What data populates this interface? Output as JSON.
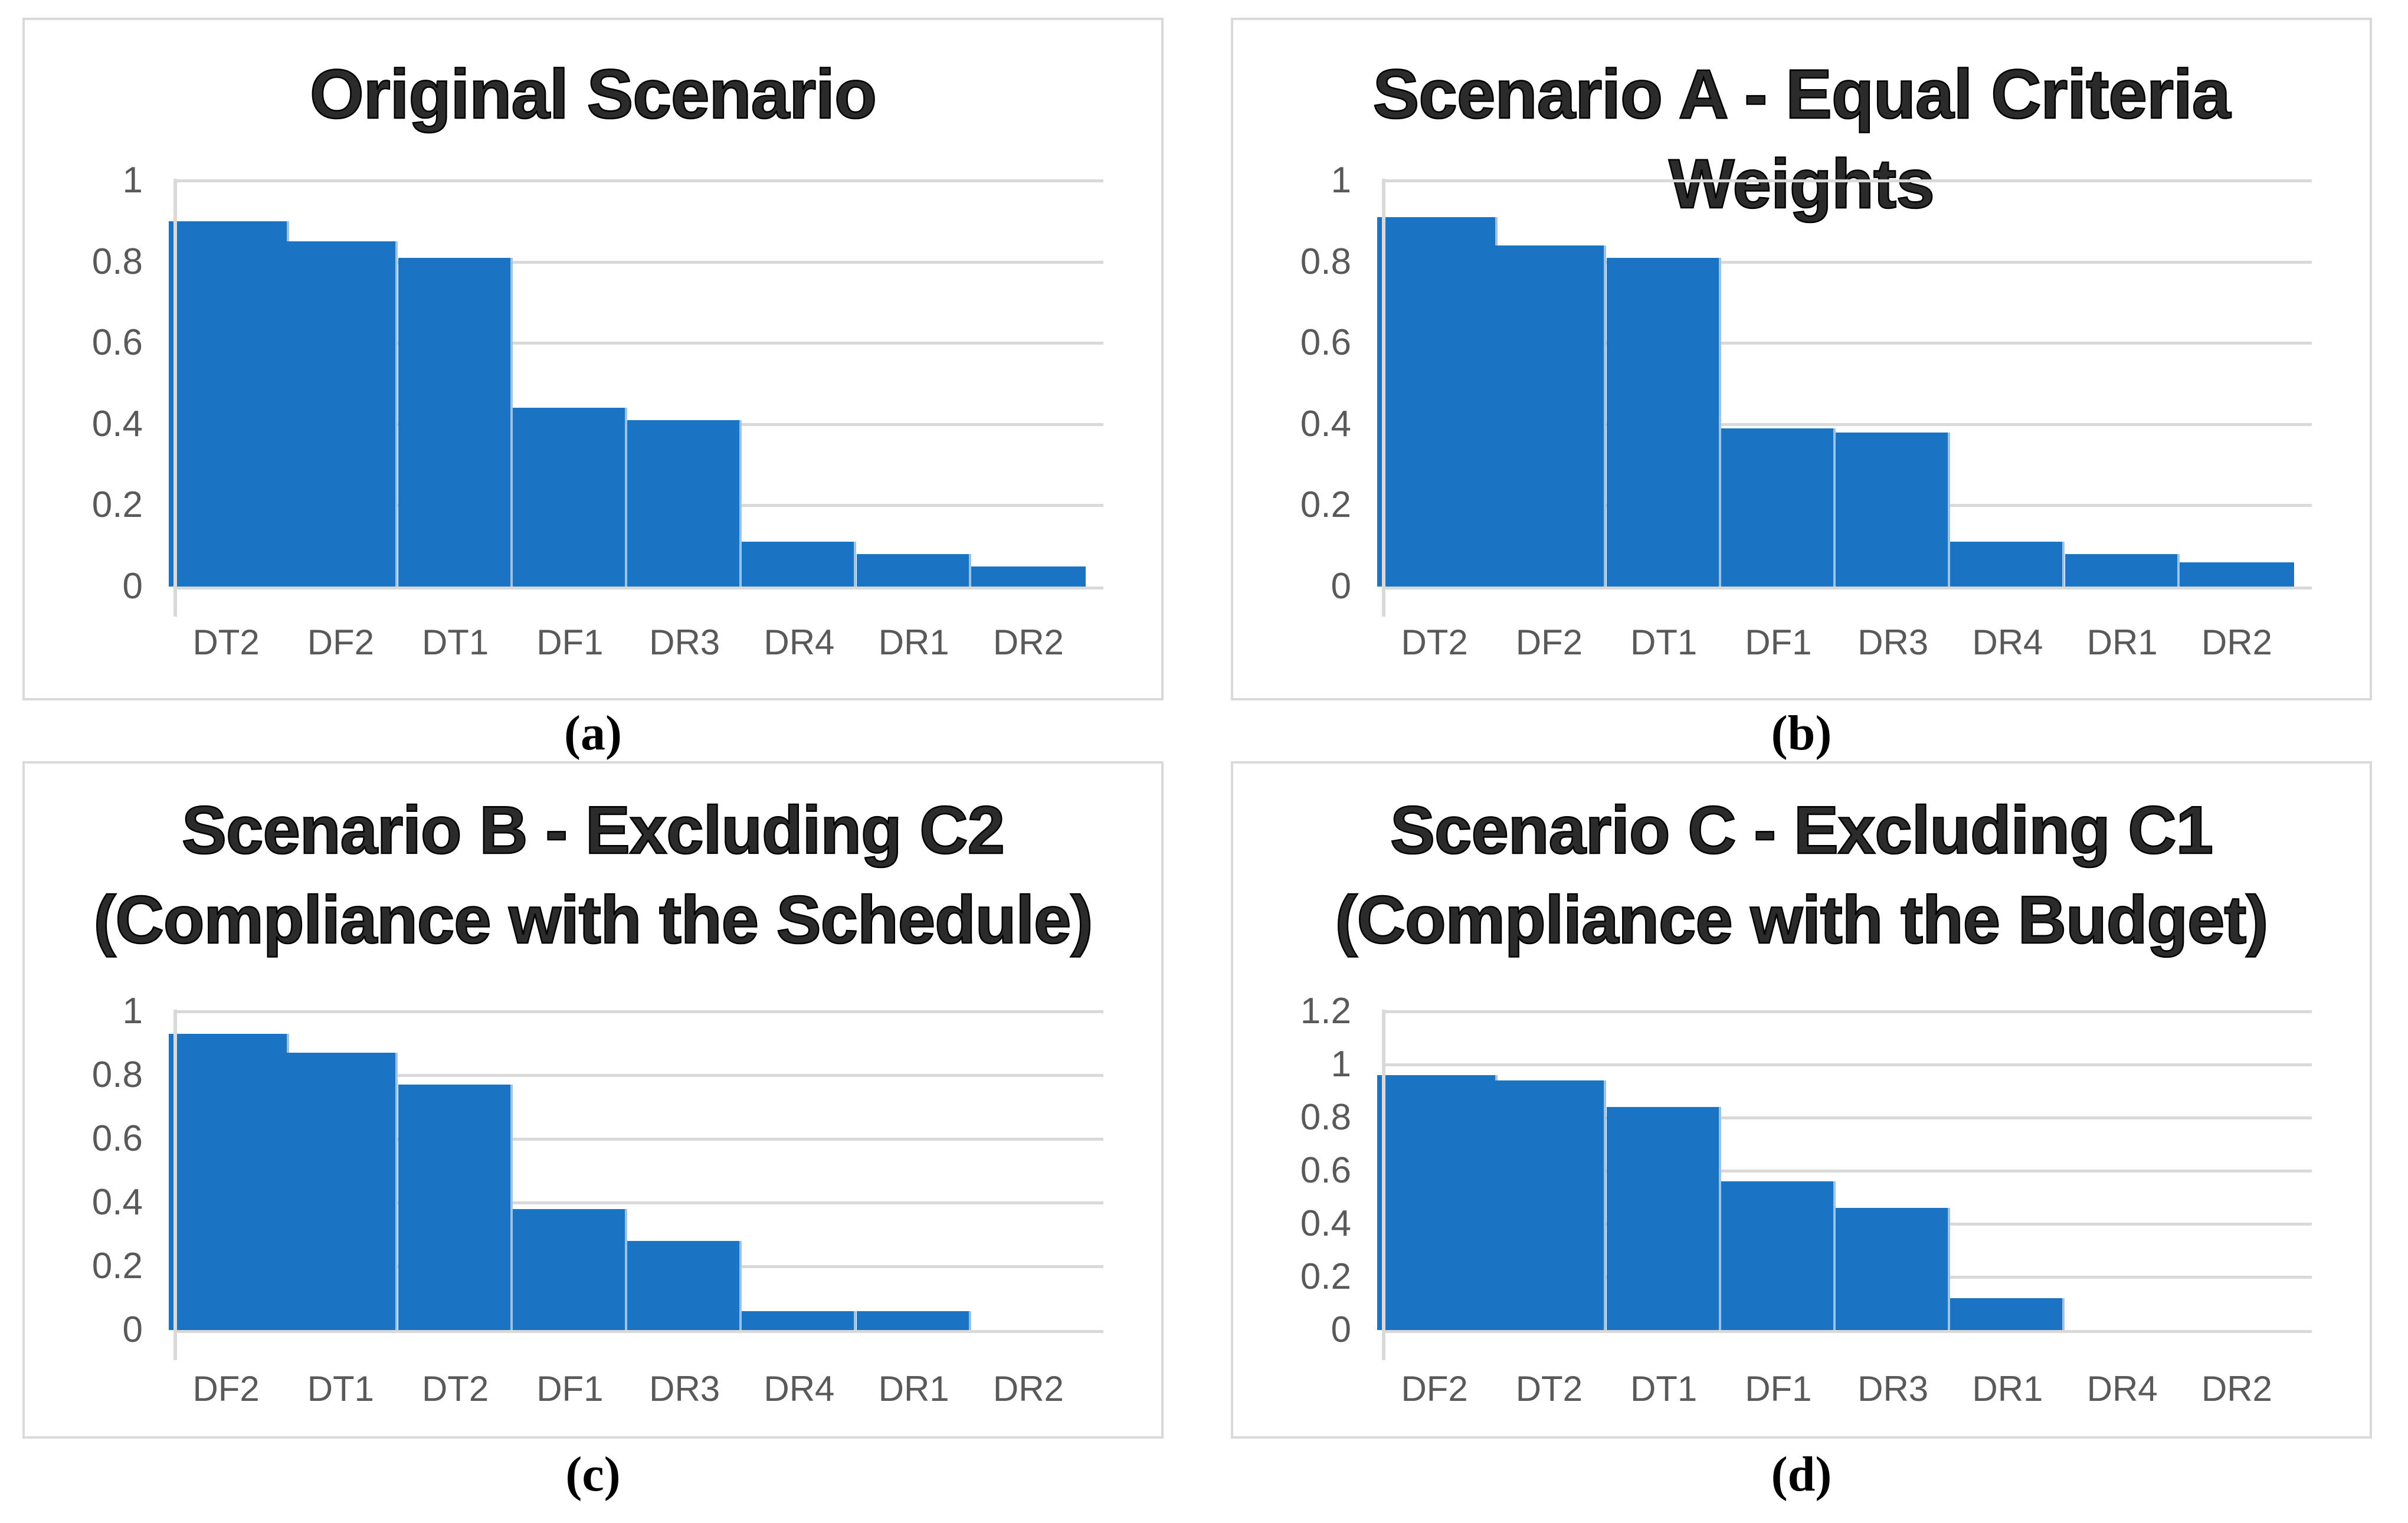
{
  "figure": {
    "background_color": "#ffffff",
    "panel_border_color": "#d9d9d9",
    "gridline_color": "#d9d9d9",
    "axis_text_color": "#595959",
    "bar_color": "#1b73c4",
    "bar_divider_color": "#9cc3e8",
    "title_text_color": "#000000"
  },
  "chart_data": [
    {
      "type": "bar",
      "caption": "(a)",
      "title_lines": [
        "Original Scenario"
      ],
      "categories": [
        "DT2",
        "DF2",
        "DT1",
        "DF1",
        "DR3",
        "DR4",
        "DR1",
        "DR2"
      ],
      "values": [
        0.9,
        0.85,
        0.81,
        0.44,
        0.41,
        0.11,
        0.08,
        0.05
      ],
      "xlabel": "",
      "ylabel": "",
      "ylim": [
        0,
        1
      ],
      "yticks": [
        0,
        0.2,
        0.4,
        0.6,
        0.8,
        1
      ],
      "ytick_labels": [
        "0",
        "0.2",
        "0.4",
        "0.6",
        "0.8",
        "1"
      ],
      "grid": true,
      "legend": false
    },
    {
      "type": "bar",
      "caption": "(b)",
      "title_lines": [
        "Scenario A - Equal Criteria Weights"
      ],
      "categories": [
        "DT2",
        "DF2",
        "DT1",
        "DF1",
        "DR3",
        "DR4",
        "DR1",
        "DR2"
      ],
      "values": [
        0.91,
        0.84,
        0.81,
        0.39,
        0.38,
        0.11,
        0.08,
        0.06
      ],
      "xlabel": "",
      "ylabel": "",
      "ylim": [
        0,
        1
      ],
      "yticks": [
        0,
        0.2,
        0.4,
        0.6,
        0.8,
        1
      ],
      "ytick_labels": [
        "0",
        "0.2",
        "0.4",
        "0.6",
        "0.8",
        "1"
      ],
      "grid": true,
      "legend": false
    },
    {
      "type": "bar",
      "caption": "(c)",
      "title_lines": [
        "Scenario B - Excluding C2",
        "(Compliance with the Schedule)"
      ],
      "categories": [
        "DF2",
        "DT1",
        "DT2",
        "DF1",
        "DR3",
        "DR4",
        "DR1",
        "DR2"
      ],
      "values": [
        0.93,
        0.87,
        0.77,
        0.38,
        0.28,
        0.06,
        0.06,
        0
      ],
      "xlabel": "",
      "ylabel": "",
      "ylim": [
        0,
        1
      ],
      "yticks": [
        0,
        0.2,
        0.4,
        0.6,
        0.8,
        1
      ],
      "ytick_labels": [
        "0",
        "0.2",
        "0.4",
        "0.6",
        "0.8",
        "1"
      ],
      "grid": true,
      "legend": false
    },
    {
      "type": "bar",
      "caption": "(d)",
      "title_lines": [
        "Scenario C - Excluding C1",
        "(Compliance with the Budget)"
      ],
      "categories": [
        "DF2",
        "DT2",
        "DT1",
        "DF1",
        "DR3",
        "DR1",
        "DR4",
        "DR2"
      ],
      "values": [
        0.96,
        0.94,
        0.84,
        0.56,
        0.46,
        0.12,
        0,
        0
      ],
      "xlabel": "",
      "ylabel": "",
      "ylim": [
        0,
        1.2
      ],
      "yticks": [
        0,
        0.2,
        0.4,
        0.6,
        0.8,
        1,
        1.2
      ],
      "ytick_labels": [
        "0",
        "0.2",
        "0.4",
        "0.6",
        "0.8",
        "1",
        "1.2"
      ],
      "grid": true,
      "legend": false
    }
  ]
}
